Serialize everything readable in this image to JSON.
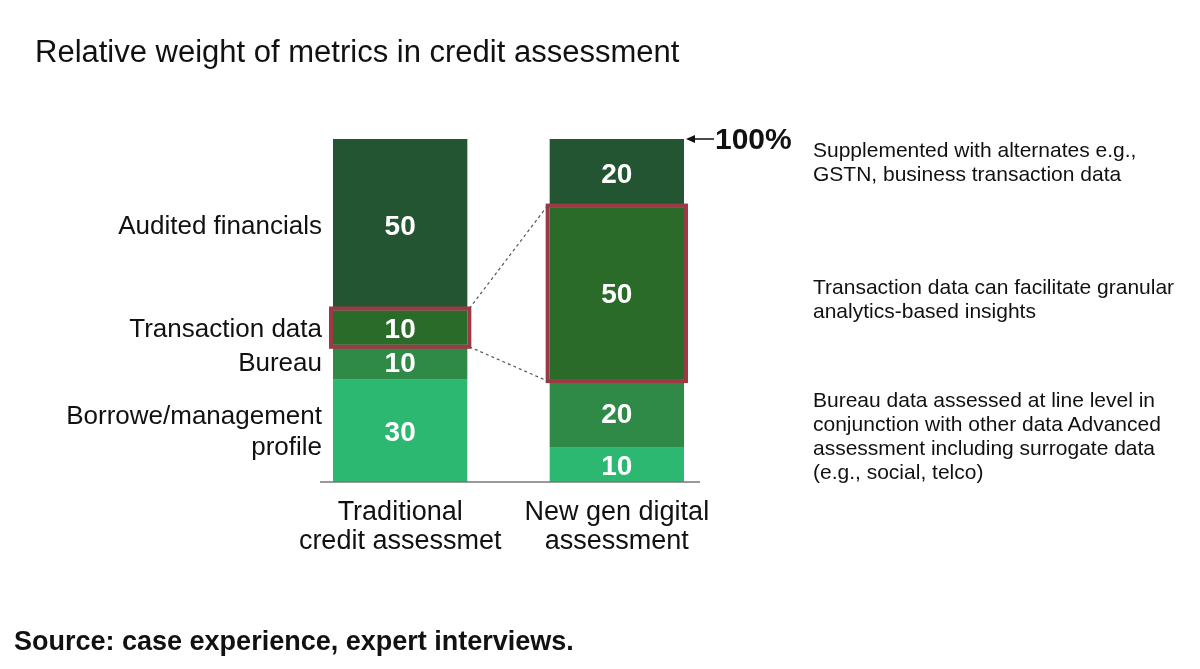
{
  "chart_data": {
    "type": "bar",
    "title": "Relative weight of metrics in credit assessment",
    "categories": [
      "Traditional credit assessmet",
      "New gen digital assessment"
    ],
    "stacked": true,
    "data_labels": true,
    "series": [
      {
        "name": "Borrowe/management profile",
        "color": "#2cb871",
        "values": [
          30,
          10
        ]
      },
      {
        "name": "Bureau",
        "color": "#2f8a47",
        "values": [
          10,
          20
        ]
      },
      {
        "name": "Transaction data",
        "color": "#2b6b29",
        "values": [
          10,
          50
        ]
      },
      {
        "name": "Audited financials",
        "color": "#235532",
        "values": [
          50,
          20
        ]
      }
    ],
    "annotations": [
      "100%",
      "Supplemented with alternates e.g., GSTN, business transaction data",
      "Transaction data can facilitate granular analytics-based insights",
      "Bureau data assessed at line level in conjunction with other data Advanced assessment including surrogate data (e.g., social, telco)",
      "Source: case experience, expert interviews."
    ]
  }
}
